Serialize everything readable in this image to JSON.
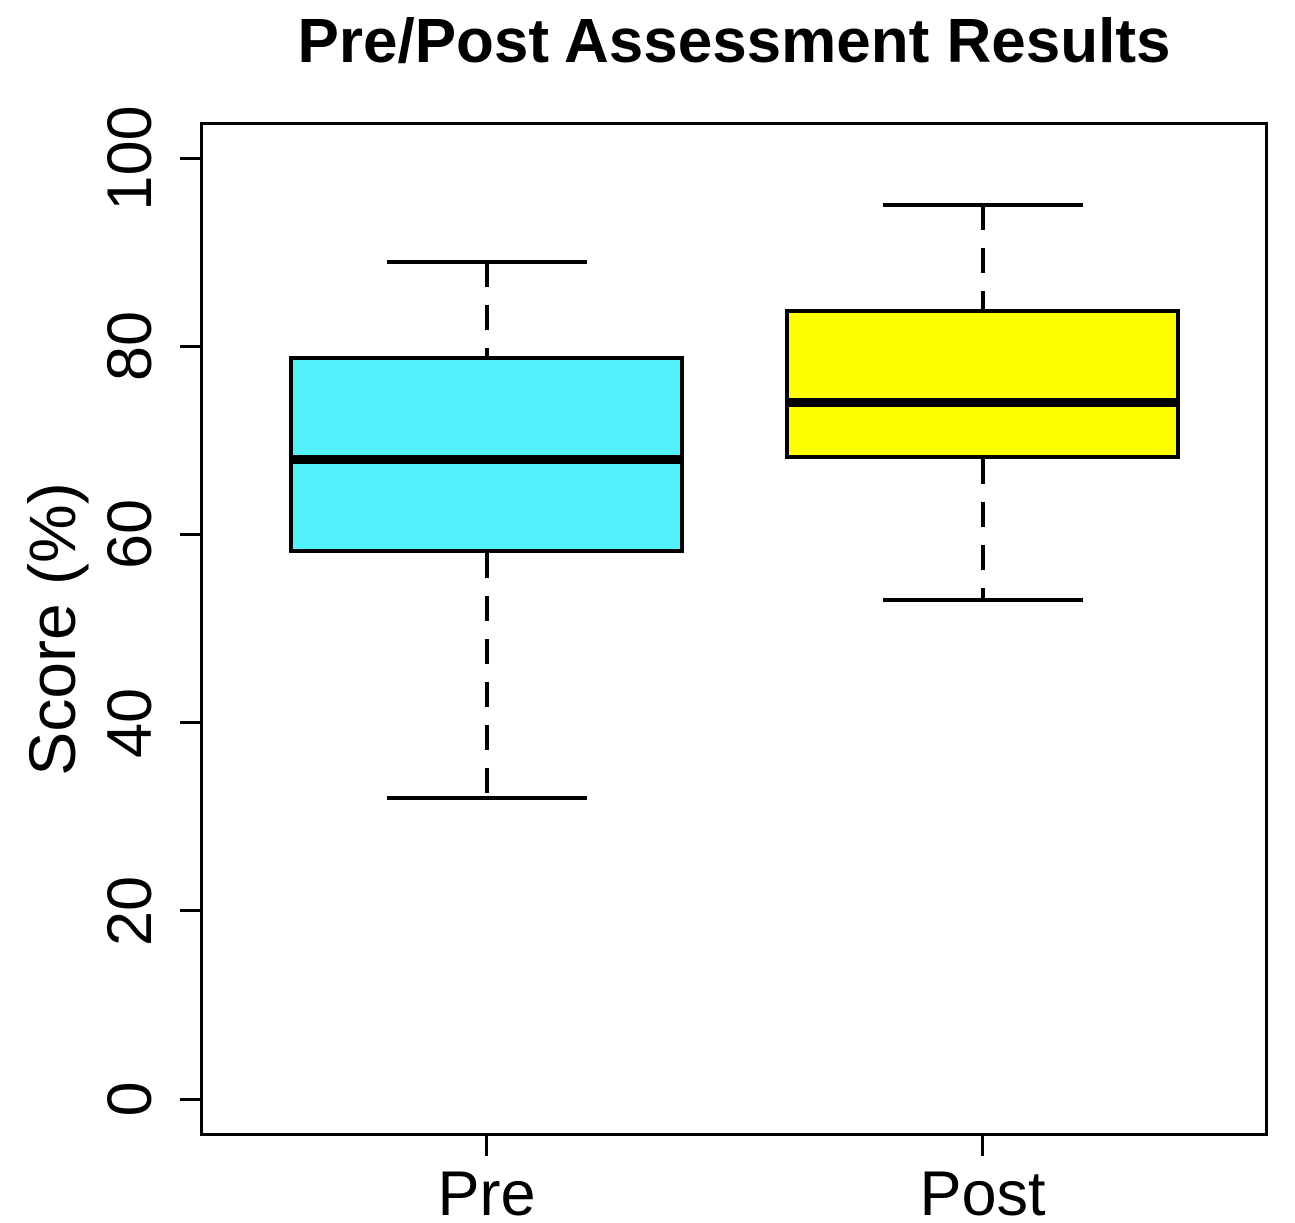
{
  "chart_data": {
    "type": "boxplot",
    "title": "Pre/Post Assessment Results",
    "ylabel": "Score (%)",
    "xlabel": "",
    "ylim": [
      0,
      100
    ],
    "yticks": [
      0,
      20,
      40,
      60,
      80,
      100
    ],
    "grid": "off",
    "legend": "none",
    "categories": [
      "Pre",
      "Post"
    ],
    "series": [
      {
        "name": "Pre",
        "min": 32,
        "q1": 58,
        "median": 68,
        "q3": 79,
        "max": 89,
        "fill": "#52F2FC"
      },
      {
        "name": "Post",
        "min": 53,
        "q1": 68,
        "median": 74,
        "q3": 84,
        "max": 95,
        "fill": "#FFFF00"
      }
    ],
    "colors": {
      "axis": "#000000",
      "box_border": "#000000",
      "median": "#000000",
      "background": "#FFFFFF",
      "pre_fill": "#52F2FC",
      "post_fill": "#FFFF00"
    }
  }
}
